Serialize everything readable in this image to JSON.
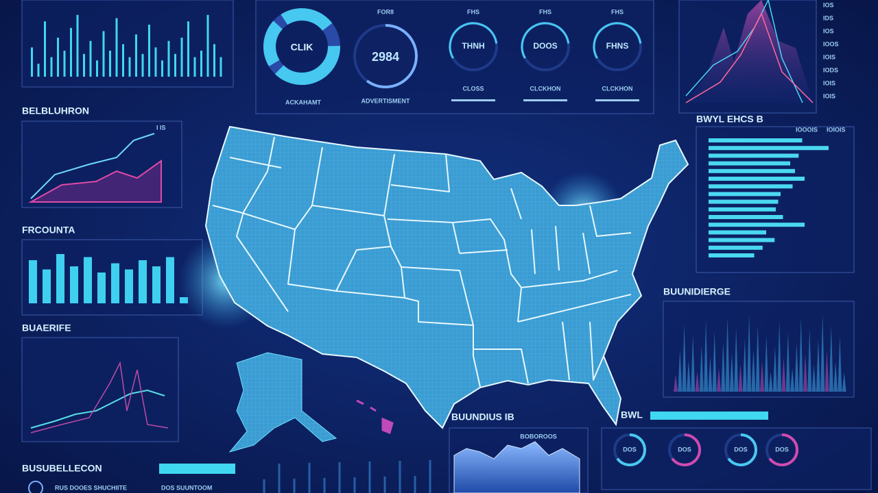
{
  "left": {
    "panel1_title": "BELBLUHRON",
    "panel1_tag": "I IS",
    "panel2_title": "FRCOUNTA",
    "panel3_title": "BUAERIFE",
    "panel4_title": "BUSUBELLECON",
    "footer": [
      "RUS DOOES SHUCHIITE",
      "DOS SUUNTOOM"
    ],
    "top_bars": [
      45,
      20,
      85,
      30,
      60,
      40,
      75,
      95,
      35,
      55,
      25,
      70,
      40,
      90,
      50,
      30,
      65,
      35,
      80,
      45,
      25,
      55,
      35,
      60,
      85,
      30,
      40,
      95,
      50,
      30
    ],
    "panel2_bars": [
      70,
      55,
      80,
      60,
      75,
      50,
      65,
      55,
      70,
      60,
      75,
      10
    ]
  },
  "center": {
    "donut_label": "CLIK",
    "ring_header": "FOR8",
    "ring_label": "2984",
    "gauges": [
      {
        "header": "FHS",
        "label": "THNH",
        "caption": "CLOSS"
      },
      {
        "header": "FHS",
        "label": "DOOS",
        "caption": "CLCKHON"
      },
      {
        "header": "FHS",
        "label": "FHNS",
        "caption": "CLCKHON"
      }
    ],
    "captions": [
      "ACKAHAMT",
      "ADVERTISMENT"
    ],
    "bottom_title": "BUUNDIUS IB",
    "bottom_caption": "BOBOROOS"
  },
  "right": {
    "axis_labels": [
      "IOS",
      "IDS",
      "IOS",
      "IOOS",
      "IOIS",
      "IODS",
      "IOIS",
      "IOIS"
    ],
    "bars_title": "BWYL EHCS B",
    "bars_tags": [
      "IOOOIS",
      "IOIOIS"
    ],
    "bars": [
      78,
      100,
      75,
      68,
      72,
      80,
      70,
      60,
      58,
      56,
      62,
      80,
      48,
      55,
      45,
      38
    ],
    "spikes_title": "BUUNIDIERGE",
    "progress_title": "BWL",
    "gauges": [
      "DOS",
      "DOS",
      "DOS",
      "DOS"
    ]
  }
}
